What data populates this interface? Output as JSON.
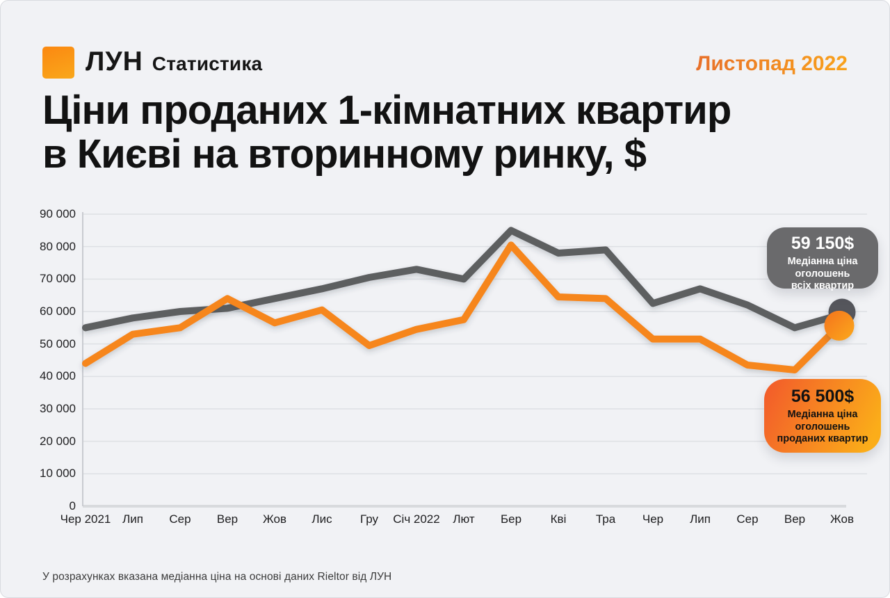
{
  "header": {
    "brand_name": "ЛУН",
    "brand_suffix": "Статистика",
    "period": "Листопад 2022"
  },
  "title": {
    "line1": "Ціни проданих 1-кімнатних квартир",
    "line2": "в Києві на вторинному ринку, $"
  },
  "chart_data": {
    "type": "line",
    "title": "Ціни проданих 1-кімнатних квартир в Києві на вторинному ринку, $",
    "categories": [
      "Чер 2021",
      "Лип",
      "Сер",
      "Вер",
      "Жов",
      "Лис",
      "Гру",
      "Січ 2022",
      "Лют",
      "Бер",
      "Кві",
      "Тра",
      "Чер",
      "Лип",
      "Сер",
      "Вер",
      "Жов"
    ],
    "series": [
      {
        "name": "Медіанна ціна оголошень всіх квартир",
        "color": "#5D5E61",
        "marker_color": "#55575C",
        "values": [
          55000,
          58000,
          60000,
          61000,
          64000,
          67000,
          70500,
          73000,
          70000,
          85000,
          78000,
          79000,
          62500,
          67000,
          62000,
          55000,
          59150
        ]
      },
      {
        "name": "Медіанна ціна оголошень проданих квартир",
        "color": "#F6861F",
        "marker_gradient": [
          "#F5731D",
          "#FBA91C"
        ],
        "values": [
          44000,
          53000,
          55000,
          64000,
          56500,
          60500,
          49500,
          54500,
          57500,
          80500,
          64500,
          64000,
          51500,
          51500,
          43500,
          42000,
          56500
        ]
      }
    ],
    "ylim": [
      0,
      90000
    ],
    "ytick_step": 10000,
    "ytick_labels": [
      "0",
      "10 000",
      "20 000",
      "30 000",
      "40 000",
      "50 000",
      "60 000",
      "70 000",
      "80 000",
      "90 000"
    ],
    "grid": "horizontal",
    "legend_position": "none",
    "annotations": [
      {
        "value": "59 150$",
        "lines": [
          "Медіанна ціна",
          "оголошень",
          "всіх квартир"
        ],
        "series": "all"
      },
      {
        "value": "56 500$",
        "lines": [
          "Медіанна ціна",
          "оголошень",
          "проданих квартир"
        ],
        "series": "sold"
      }
    ]
  },
  "footer": {
    "note": "У розрахунках вказана медіанна ціна на основі даних Rieltor від ЛУН"
  },
  "colors": {
    "background": "#F1F2F5",
    "gridline": "#DEE0E4",
    "axis": "#C9CBD0",
    "baseline": "#D8DADD",
    "gray_series": "#5D5E61",
    "orange_series": "#F6861F",
    "gray_bubble": "#6A6A6C",
    "orange_bubble_gradient": [
      "#F2592B",
      "#FBAD19"
    ],
    "brand_orange": "#FB8B12"
  }
}
